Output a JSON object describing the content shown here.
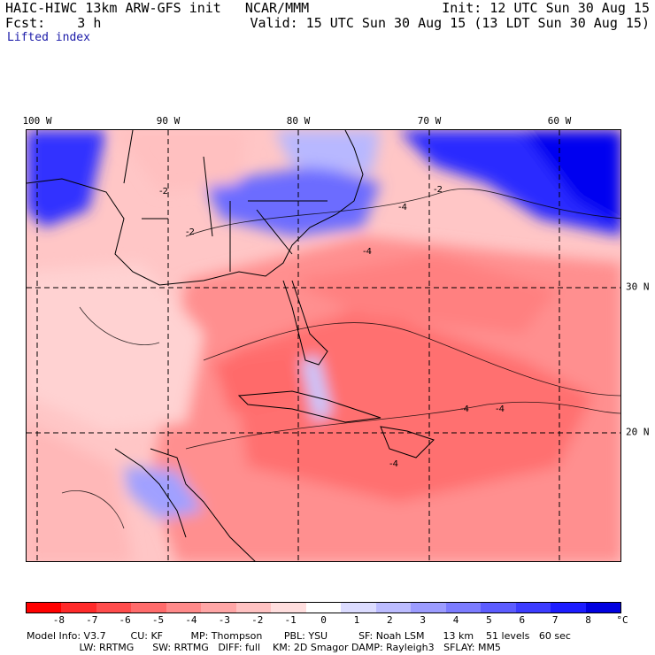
{
  "header": {
    "title_left": "HAIC-HIWC 13km ARW-GFS init   NCAR/MMM",
    "fcst": "Fcst:    3 h",
    "field": "Lifted index",
    "init": "Init: 12 UTC Sun 30 Aug 15",
    "valid": "Valid: 15 UTC Sun 30 Aug 15 (13 LDT Sun 30 Aug 15)"
  },
  "map": {
    "lon_labels": [
      "100 W",
      "90 W",
      "80 W",
      "70 W",
      "60 W"
    ],
    "lat_labels": [
      "30 N",
      "20 N"
    ],
    "contour_labels": [
      "-2",
      "-4",
      "-2",
      "-4",
      "-4",
      "-4",
      "-4",
      "-2"
    ]
  },
  "colorbar": {
    "colors": [
      "#ff0000",
      "#ff2a2a",
      "#ff4c4c",
      "#ff6b6b",
      "#ff8a8a",
      "#ffa6a6",
      "#ffc2c2",
      "#ffdede",
      "#ffffff",
      "#dcdcff",
      "#bcbcff",
      "#9c9cff",
      "#7c7cff",
      "#5c5cff",
      "#3c3cff",
      "#1c1cff",
      "#0000e0"
    ],
    "tick_labels": [
      "-8",
      "-7",
      "-6",
      "-5",
      "-4",
      "-3",
      "-2",
      "-1",
      "0",
      "1",
      "2",
      "3",
      "4",
      "5",
      "6",
      "7",
      "8"
    ],
    "unit": "°C"
  },
  "footer": {
    "line1": "Model Info: V3.7        CU: KF         MP: Thompson       PBL: YSU          SF: Noah LSM      13 km    51 levels   60 sec",
    "line2": "                 LW: RRTMG      SW: RRTMG   DIFF: full    KM: 2D Smagor DAMP: Rayleigh3   SFLAY: MM5"
  }
}
